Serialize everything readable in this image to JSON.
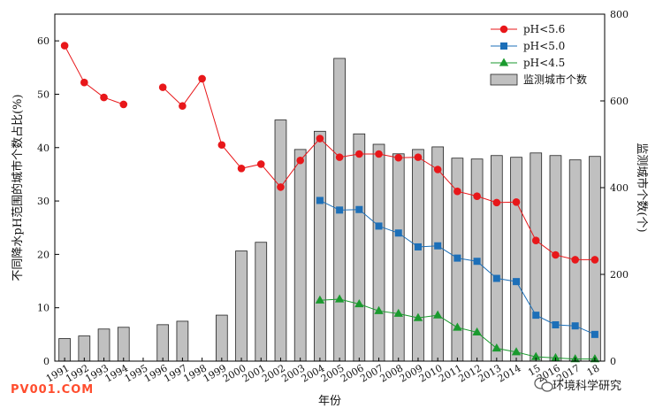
{
  "chart_data": {
    "type": "bar+line",
    "xlabel": "年份",
    "ylabel_left": "不同降水pH范围的城市个数占比(%)",
    "ylabel_right": "监测城市个数(个)",
    "ylim_left": [
      0,
      65
    ],
    "ylim_right": [
      0,
      800
    ],
    "yticks_left": [
      0,
      10,
      20,
      30,
      40,
      50,
      60
    ],
    "yticks_right": [
      0,
      200,
      400,
      600,
      800
    ],
    "categories": [
      "1991",
      "1992",
      "1993",
      "1994",
      "1995",
      "1996",
      "1997",
      "1998",
      "1999",
      "2000",
      "2001",
      "2002",
      "2003",
      "2004",
      "2005",
      "2006",
      "2007",
      "2008",
      "2009",
      "2010",
      "2011",
      "2012",
      "2013",
      "2014",
      "2015",
      "2016",
      "2017",
      "2018"
    ],
    "tick_labels": [
      "1991",
      "1992",
      "1993",
      "1994",
      "1995",
      "1996",
      "1997",
      "1998",
      "1999",
      "2000",
      "2001",
      "2002",
      "2003",
      "2004",
      "2005",
      "2006",
      "2007",
      "2008",
      "2009",
      "2010",
      "2011",
      "2012",
      "2013",
      "2014",
      "15",
      "2016",
      "2017",
      "18"
    ],
    "bars": {
      "name": "监测城市个数",
      "axis": "right",
      "color": "#c0c0c0",
      "values": [
        52,
        58,
        74,
        78,
        null,
        84,
        92,
        null,
        106,
        254,
        274,
        556,
        488,
        530,
        698,
        524,
        500,
        478,
        488,
        494,
        468,
        466,
        474,
        470,
        480,
        474,
        464,
        472
      ]
    },
    "series": [
      {
        "name": "pH<5.6",
        "axis": "left",
        "color": "#e8171a",
        "marker": "circle",
        "values": [
          59.1,
          52.2,
          49.4,
          48.1,
          null,
          51.3,
          47.8,
          52.9,
          40.5,
          36.1,
          36.9,
          32.6,
          37.6,
          41.7,
          38.2,
          38.8,
          38.8,
          38.1,
          38.2,
          35.9,
          31.8,
          30.9,
          29.7,
          29.8,
          22.6,
          19.9,
          19.0,
          19.0
        ]
      },
      {
        "name": "pH<5.0",
        "axis": "left",
        "color": "#1c6fb8",
        "marker": "square",
        "values": [
          null,
          null,
          null,
          null,
          null,
          null,
          null,
          null,
          null,
          null,
          null,
          null,
          null,
          30.1,
          28.3,
          28.4,
          25.3,
          24.0,
          21.4,
          21.6,
          19.3,
          18.7,
          15.5,
          14.9,
          8.6,
          6.8,
          6.6,
          5.0
        ]
      },
      {
        "name": "pH<4.5",
        "axis": "left",
        "color": "#1a9a2e",
        "marker": "triangle",
        "values": [
          null,
          null,
          null,
          null,
          null,
          null,
          null,
          null,
          null,
          null,
          null,
          null,
          null,
          11.4,
          11.6,
          10.7,
          9.4,
          8.9,
          8.1,
          8.6,
          6.3,
          5.4,
          2.4,
          1.7,
          0.8,
          0.6,
          0.4,
          0.4
        ]
      }
    ],
    "legend_position": "top-right"
  },
  "footer": {
    "watermark_left": "PV001.COM",
    "watermark_right": "环境科学研究"
  },
  "colors": {
    "watermark_left": "#ff4d2e",
    "axis": "#000000"
  },
  "icons": {
    "watermark_logo": "wechat-logo-icon"
  }
}
